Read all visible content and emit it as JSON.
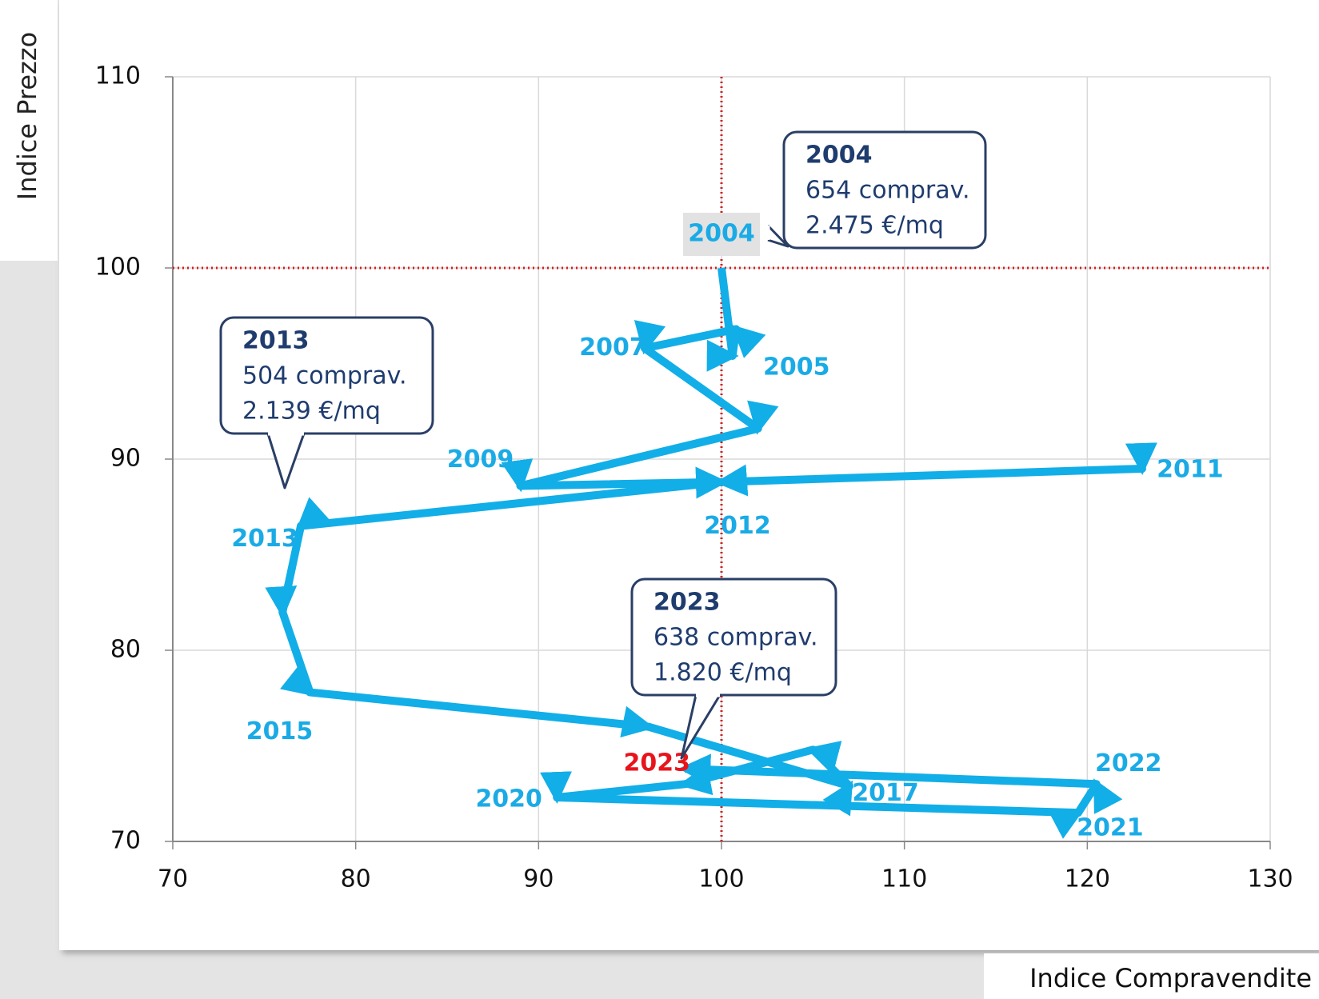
{
  "chart_data": {
    "type": "connected_scatter",
    "xlabel": "Indice Compravendite",
    "ylabel": "Indice Prezzo",
    "xlim": [
      70,
      130
    ],
    "xticks": [
      70,
      80,
      90,
      100,
      110,
      120,
      130
    ],
    "ylim": [
      70,
      110
    ],
    "yticks": [
      70,
      80,
      90,
      100,
      110
    ],
    "grid": true,
    "reference_lines": {
      "x": 100,
      "y": 100,
      "color": "#d02020"
    },
    "color": "#12aee8",
    "label_color": "#1aabe6",
    "labels": [
      "2004",
      "2005",
      null,
      "2007",
      null,
      "2009",
      null,
      "2011",
      "2012",
      "2013",
      null,
      "2015",
      null,
      "2017",
      null,
      null,
      "2020",
      "2021",
      "2022",
      "2023"
    ],
    "highlight": {
      "label": "2023",
      "color": "#e8141c"
    },
    "x": [
      100,
      100.6,
      100.8,
      95.8,
      102,
      89,
      100,
      123,
      100,
      77,
      76,
      77.5,
      96,
      107,
      105,
      98,
      91,
      119.5,
      120.5,
      98
    ],
    "y": [
      100,
      95.4,
      96.8,
      95.8,
      91.6,
      88.6,
      88.8,
      89.5,
      88.8,
      86.5,
      82,
      77.8,
      76,
      72.9,
      74.8,
      73,
      72.3,
      71.5,
      73,
      73.8
    ],
    "annotations": [
      {
        "lines": [
          "2004",
          "654 comprav.",
          "2.475 €/mq"
        ]
      },
      {
        "lines": [
          "2013",
          "504 comprav.",
          "2.139 €/mq"
        ]
      },
      {
        "lines": [
          "2023",
          "638 comprav.",
          "1.820 €/mq"
        ]
      }
    ]
  }
}
